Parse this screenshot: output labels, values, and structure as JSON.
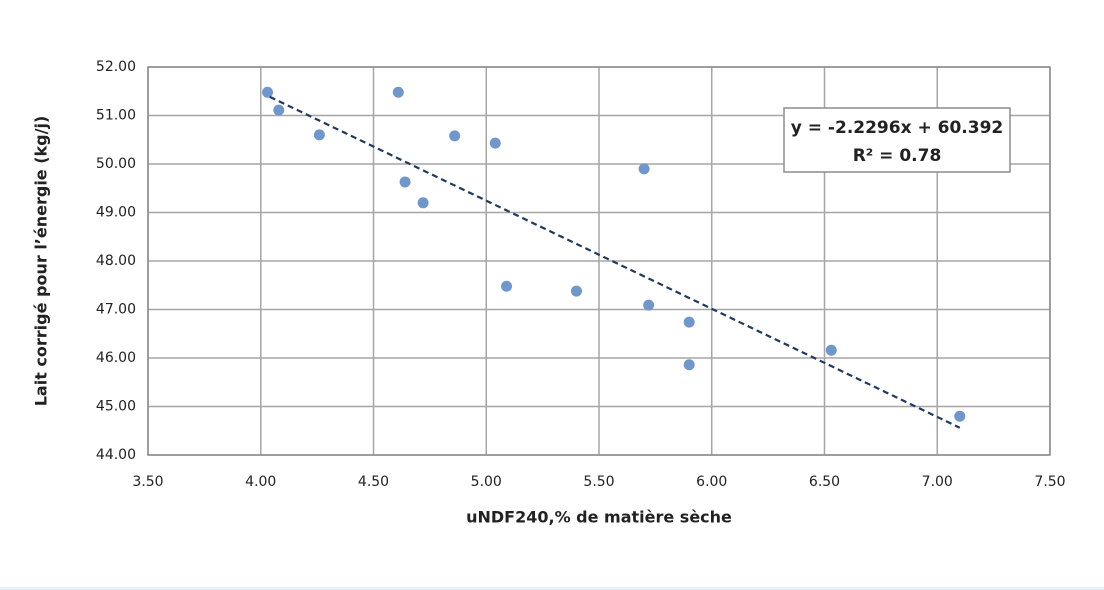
{
  "chart_data": {
    "type": "scatter",
    "x_label": "uNDF240,% de matière sèche",
    "y_label": "Lait corrigé pour l’énergie (kg/j)",
    "xlim": [
      3.5,
      7.5
    ],
    "ylim": [
      44,
      52
    ],
    "xticks": [
      {
        "value": 3.5,
        "label": "3.50"
      },
      {
        "value": 4,
        "label": "4.00"
      },
      {
        "value": 4.5,
        "label": "4.50"
      },
      {
        "value": 5,
        "label": "5.00"
      },
      {
        "value": 5.5,
        "label": "5.50"
      },
      {
        "value": 6,
        "label": "6.00"
      },
      {
        "value": 6.5,
        "label": "6.50"
      },
      {
        "value": 7,
        "label": "7.00"
      },
      {
        "value": 7.5,
        "label": "7.50"
      }
    ],
    "yticks": [
      {
        "value": 44,
        "label": "44.00"
      },
      {
        "value": 45,
        "label": "45.00"
      },
      {
        "value": 46,
        "label": "46.00"
      },
      {
        "value": 47,
        "label": "47.00"
      },
      {
        "value": 48,
        "label": "48.00"
      },
      {
        "value": 49,
        "label": "49.00"
      },
      {
        "value": 50,
        "label": "50.00"
      },
      {
        "value": 51,
        "label": "51.00"
      },
      {
        "value": 52,
        "label": "52.00"
      }
    ],
    "grid": true,
    "series": [
      {
        "color": "#6f97cc",
        "x": [
          4.03,
          4.08,
          4.26,
          4.61,
          4.86,
          5.04,
          4.64,
          4.72,
          5.7,
          5.09,
          5.4,
          5.72,
          5.9,
          5.9,
          6.53,
          7.1
        ],
        "values": [
          51.48,
          51.11,
          50.6,
          51.48,
          50.58,
          50.43,
          49.63,
          49.2,
          49.9,
          47.48,
          47.38,
          47.09,
          46.74,
          45.86,
          46.16,
          44.8
        ]
      }
    ],
    "trendline": {
      "color": "#1f3a5f",
      "dashed": true,
      "x": [
        4.04,
        7.1
      ],
      "values": [
        51.385,
        44.562
      ]
    },
    "annotations": [
      "y = -2.2296x + 60.392",
      "R² = 0.78"
    ]
  }
}
